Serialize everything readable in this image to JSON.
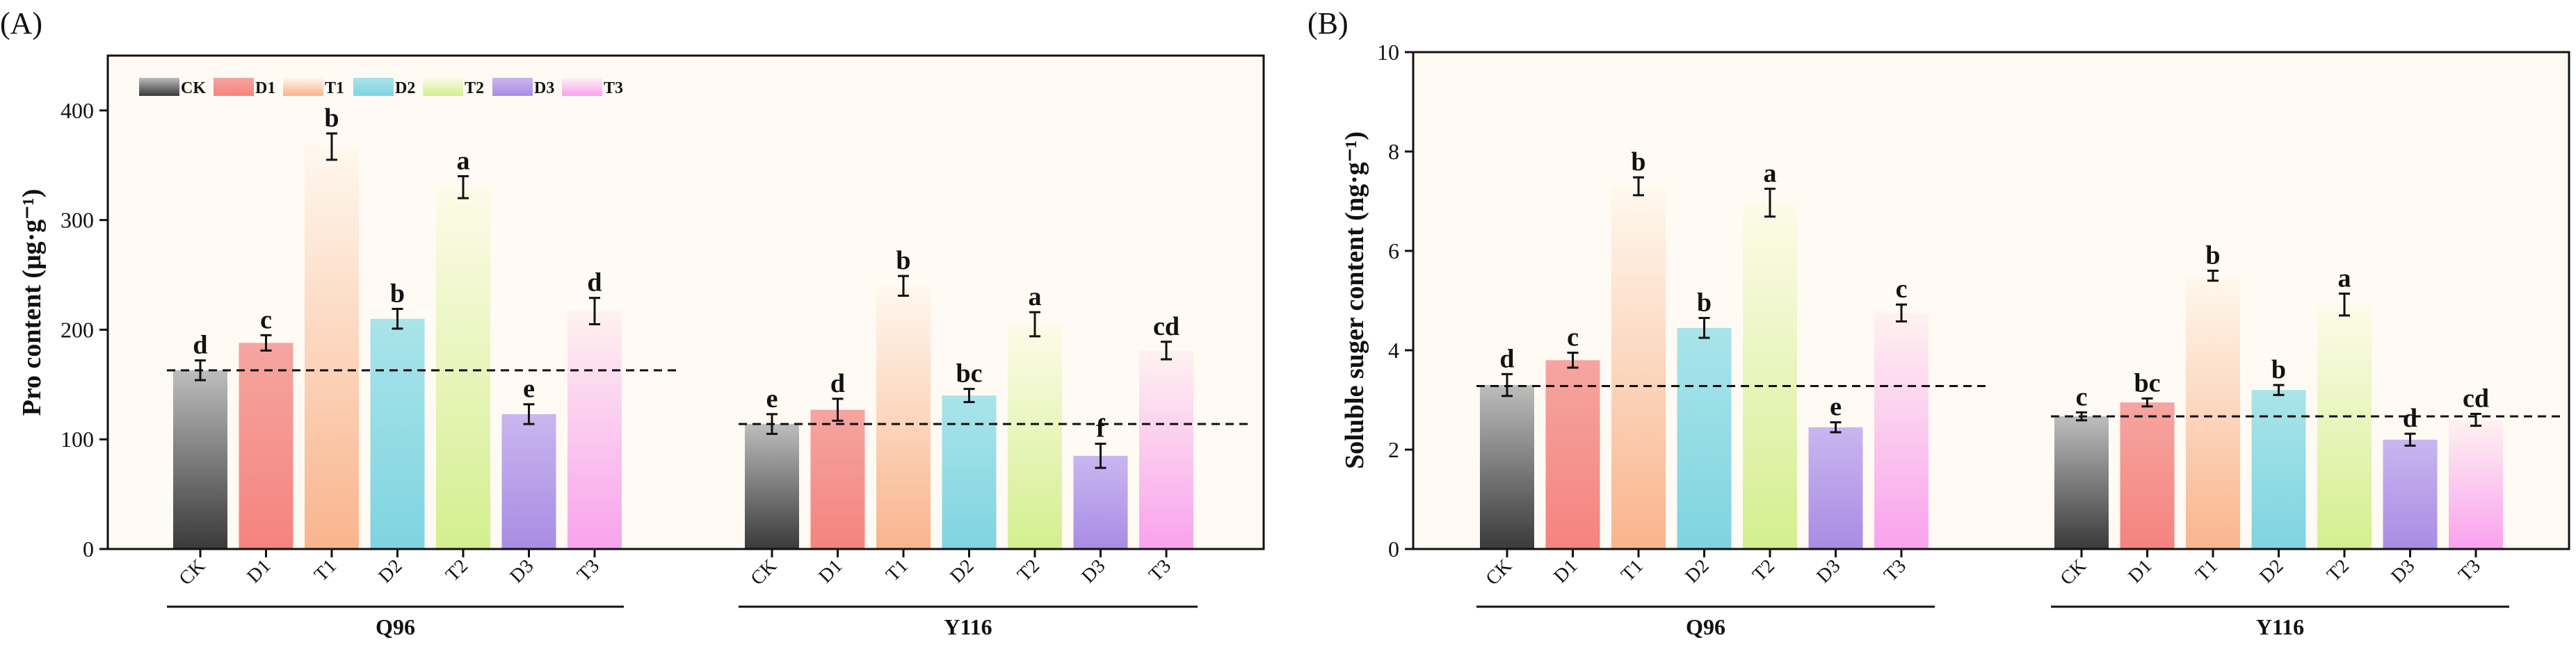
{
  "chart_data": [
    {
      "type": "bar",
      "panel": "(A)",
      "title": "",
      "xlabel": "",
      "ylabel": "Pro content (μg·g⁻¹)",
      "ylim": [
        0,
        450
      ],
      "yticks": [
        0,
        100,
        200,
        300,
        400
      ],
      "categories": [
        "CK",
        "D1",
        "T1",
        "D2",
        "T2",
        "D3",
        "T3"
      ],
      "groups": [
        {
          "name": "Q96",
          "values": [
            163,
            188,
            367,
            210,
            330,
            123,
            217
          ],
          "errors": [
            9,
            7,
            12,
            9,
            10,
            9,
            12
          ],
          "letters": [
            "d",
            "c",
            "b",
            "b",
            "a",
            "e",
            "d"
          ],
          "reference": 163
        },
        {
          "name": "Y116",
          "values": [
            114,
            127,
            240,
            140,
            205,
            85,
            181
          ],
          "errors": [
            9,
            10,
            9,
            6,
            11,
            11,
            8
          ],
          "letters": [
            "e",
            "d",
            "b",
            "bc",
            "a",
            "f",
            "cd"
          ],
          "reference": 114
        }
      ],
      "legend": [
        "CK",
        "D1",
        "T1",
        "D2",
        "T2",
        "D3",
        "T3"
      ],
      "legend_position": "top-left",
      "grid": false
    },
    {
      "type": "bar",
      "panel": "(B)",
      "title": "",
      "xlabel": "",
      "ylabel": "Soluble suger content (ng·g⁻¹)",
      "ylim": [
        0,
        10
      ],
      "yticks": [
        0,
        2,
        4,
        6,
        8,
        10
      ],
      "categories": [
        "CK",
        "D1",
        "T1",
        "D2",
        "T2",
        "D3",
        "T3"
      ],
      "groups": [
        {
          "name": "Q96",
          "values": [
            3.3,
            3.8,
            7.3,
            4.45,
            6.97,
            2.45,
            4.75
          ],
          "errors": [
            0.22,
            0.15,
            0.18,
            0.2,
            0.28,
            0.1,
            0.17
          ],
          "letters": [
            "d",
            "c",
            "b",
            "b",
            "a",
            "e",
            "c"
          ],
          "reference": 3.28
        },
        {
          "name": "Y116",
          "values": [
            2.67,
            2.95,
            5.5,
            3.2,
            4.92,
            2.2,
            2.6
          ],
          "errors": [
            0.08,
            0.08,
            0.1,
            0.1,
            0.22,
            0.12,
            0.12
          ],
          "letters": [
            "c",
            "bc",
            "b",
            "b",
            "a",
            "d",
            "cd"
          ],
          "reference": 2.67
        }
      ],
      "grid": false
    }
  ],
  "colors": {
    "CK": [
      "#3a3a3a",
      "#bdbdbd"
    ],
    "D1": [
      "#f5837e",
      "#f5a5a0"
    ],
    "T1": [
      "#f9b48d",
      "#fff8ee"
    ],
    "D2": [
      "#7fd4e0",
      "#a9e4ea"
    ],
    "T2": [
      "#d3ef8e",
      "#fdfbe9"
    ],
    "D3": [
      "#a88ce4",
      "#c9b6ef"
    ],
    "T3": [
      "#f9a2ee",
      "#fef2f0"
    ],
    "plot_background": "#fffaf3"
  }
}
